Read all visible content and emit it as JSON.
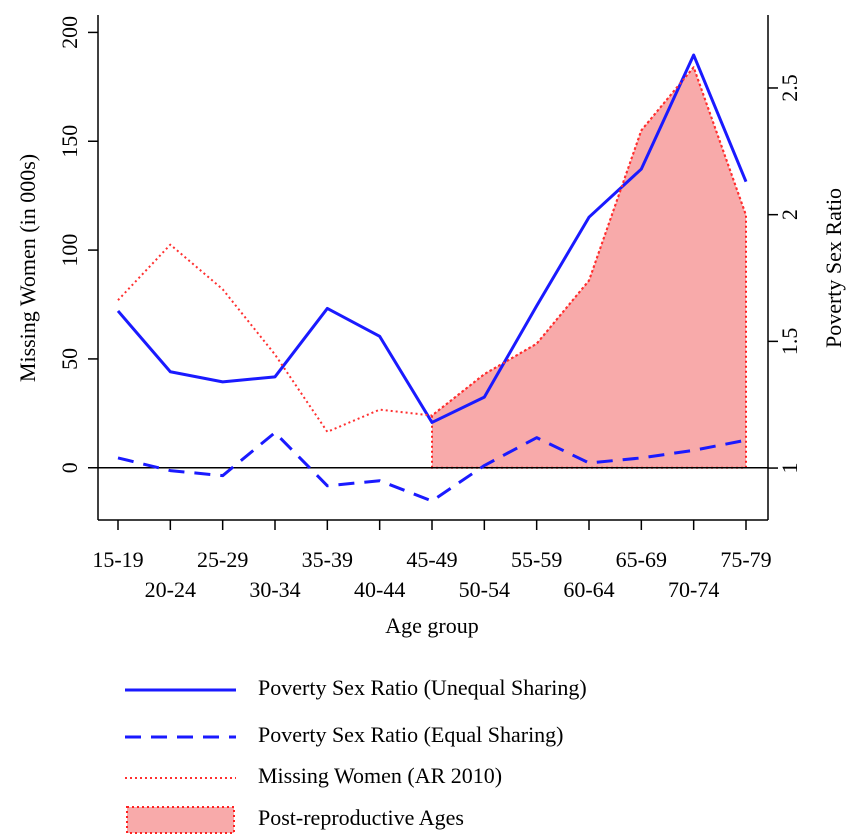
{
  "chart_data": {
    "type": "line",
    "x_label": "Age group",
    "y_label": "Missing Women (in 000s)",
    "y2_label": "Poverty Sex Ratio",
    "categories": [
      "15-19",
      "20-24",
      "25-29",
      "30-34",
      "35-39",
      "40-44",
      "45-49",
      "50-54",
      "55-59",
      "60-64",
      "65-69",
      "70-74",
      "75-79"
    ],
    "ylim": [
      -24,
      208
    ],
    "yticks": [
      0,
      50,
      100,
      150,
      200
    ],
    "y2lim": [
      0.795,
      2.788
    ],
    "y2ticks": [
      1,
      1.5,
      2,
      2.5
    ],
    "hline": 0,
    "series": [
      {
        "name": "Poverty Sex Ratio (Unequal Sharing)",
        "color": "#1a1aff",
        "style": "solid",
        "axis": "y2",
        "values": [
          1.62,
          1.38,
          1.34,
          1.36,
          1.63,
          1.52,
          1.18,
          1.28,
          1.64,
          1.99,
          2.18,
          2.63,
          2.13
        ]
      },
      {
        "name": "Poverty Sex Ratio (Equal Sharing)",
        "color": "#1a1aff",
        "style": "dashed",
        "axis": "y2",
        "values": [
          1.04,
          0.99,
          0.97,
          1.14,
          0.93,
          0.95,
          0.87,
          1.01,
          1.12,
          1.02,
          1.04,
          1.07,
          1.11
        ]
      },
      {
        "name": "Missing Women (AR 2010)",
        "color": "#ff3030",
        "style": "dotted",
        "values": [
          77,
          102.5,
          82,
          52,
          16.5,
          26.7,
          24,
          43,
          57,
          86,
          155,
          184,
          116
        ]
      }
    ],
    "shaded": {
      "name": "Post-reproductive Ages",
      "color": "#f8aaaa",
      "edge": "#ff2020",
      "range": [
        "45-49",
        "75-79"
      ],
      "series": 2
    }
  }
}
